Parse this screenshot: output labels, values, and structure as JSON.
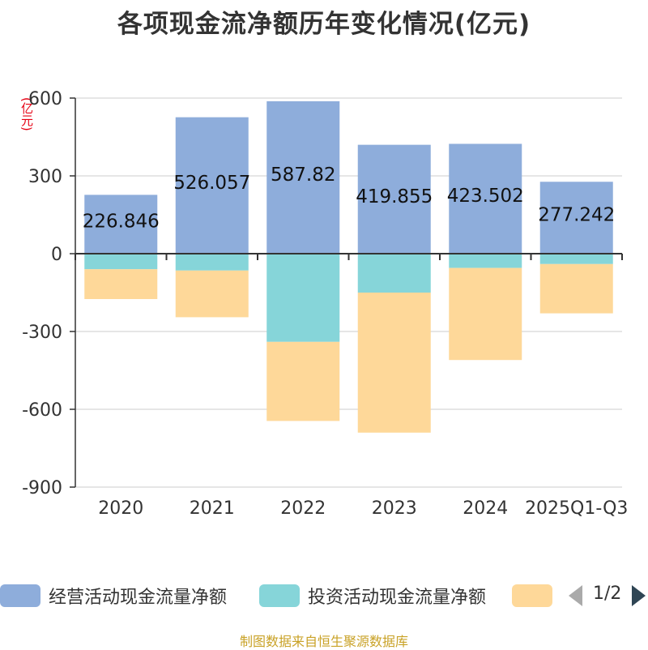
{
  "title": "各项现金流净额历年变化情况(亿元)",
  "unit_label": "(亿元)",
  "legend": {
    "items": [
      {
        "label": "经营活动现金流量净额",
        "color": "#8eaddb"
      },
      {
        "label": "投资活动现金流量净额",
        "color": "#86d5d9"
      },
      {
        "label": "",
        "color": "#fed899"
      }
    ],
    "page": "1/2"
  },
  "source": "制图数据来自恒生聚源数据库",
  "chart_data": {
    "type": "bar",
    "stacked": true,
    "categories": [
      "2020",
      "2021",
      "2022",
      "2023",
      "2024",
      "2025Q1-Q3"
    ],
    "series": [
      {
        "name": "经营活动现金流量净额",
        "color": "#8eaddb",
        "values": [
          226.846,
          526.057,
          587.82,
          419.855,
          423.502,
          277.242
        ]
      },
      {
        "name": "投资活动现金流量净额",
        "color": "#86d5d9",
        "values": [
          -60,
          -65,
          -340,
          -150,
          -55,
          -40
        ]
      },
      {
        "color": "#fed899",
        "values": [
          -115,
          -180,
          -305,
          -540,
          -355,
          -190
        ]
      }
    ],
    "data_labels": [
      "226.846",
      "526.057",
      "587.82",
      "419.855",
      "423.502",
      "277.242"
    ],
    "yticks": [
      "600",
      "300",
      "0",
      "-300",
      "-600",
      "-900"
    ],
    "ylim": [
      -900,
      600
    ],
    "grid": true
  }
}
